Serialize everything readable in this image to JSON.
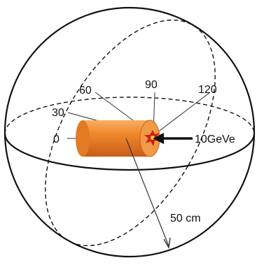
{
  "labels": {
    "angle_0": "0",
    "angle_30": "30",
    "angle_60": "60",
    "angle_90": "90",
    "angle_120": "120",
    "beam": "10GeVe",
    "radius": "50 cm"
  },
  "colors": {
    "line": "#111111",
    "cylinder_body": "#f08a2c",
    "cylinder_dark": "#d2651b",
    "cylinder_light": "#f7b064",
    "impact": "#d41a1a"
  }
}
